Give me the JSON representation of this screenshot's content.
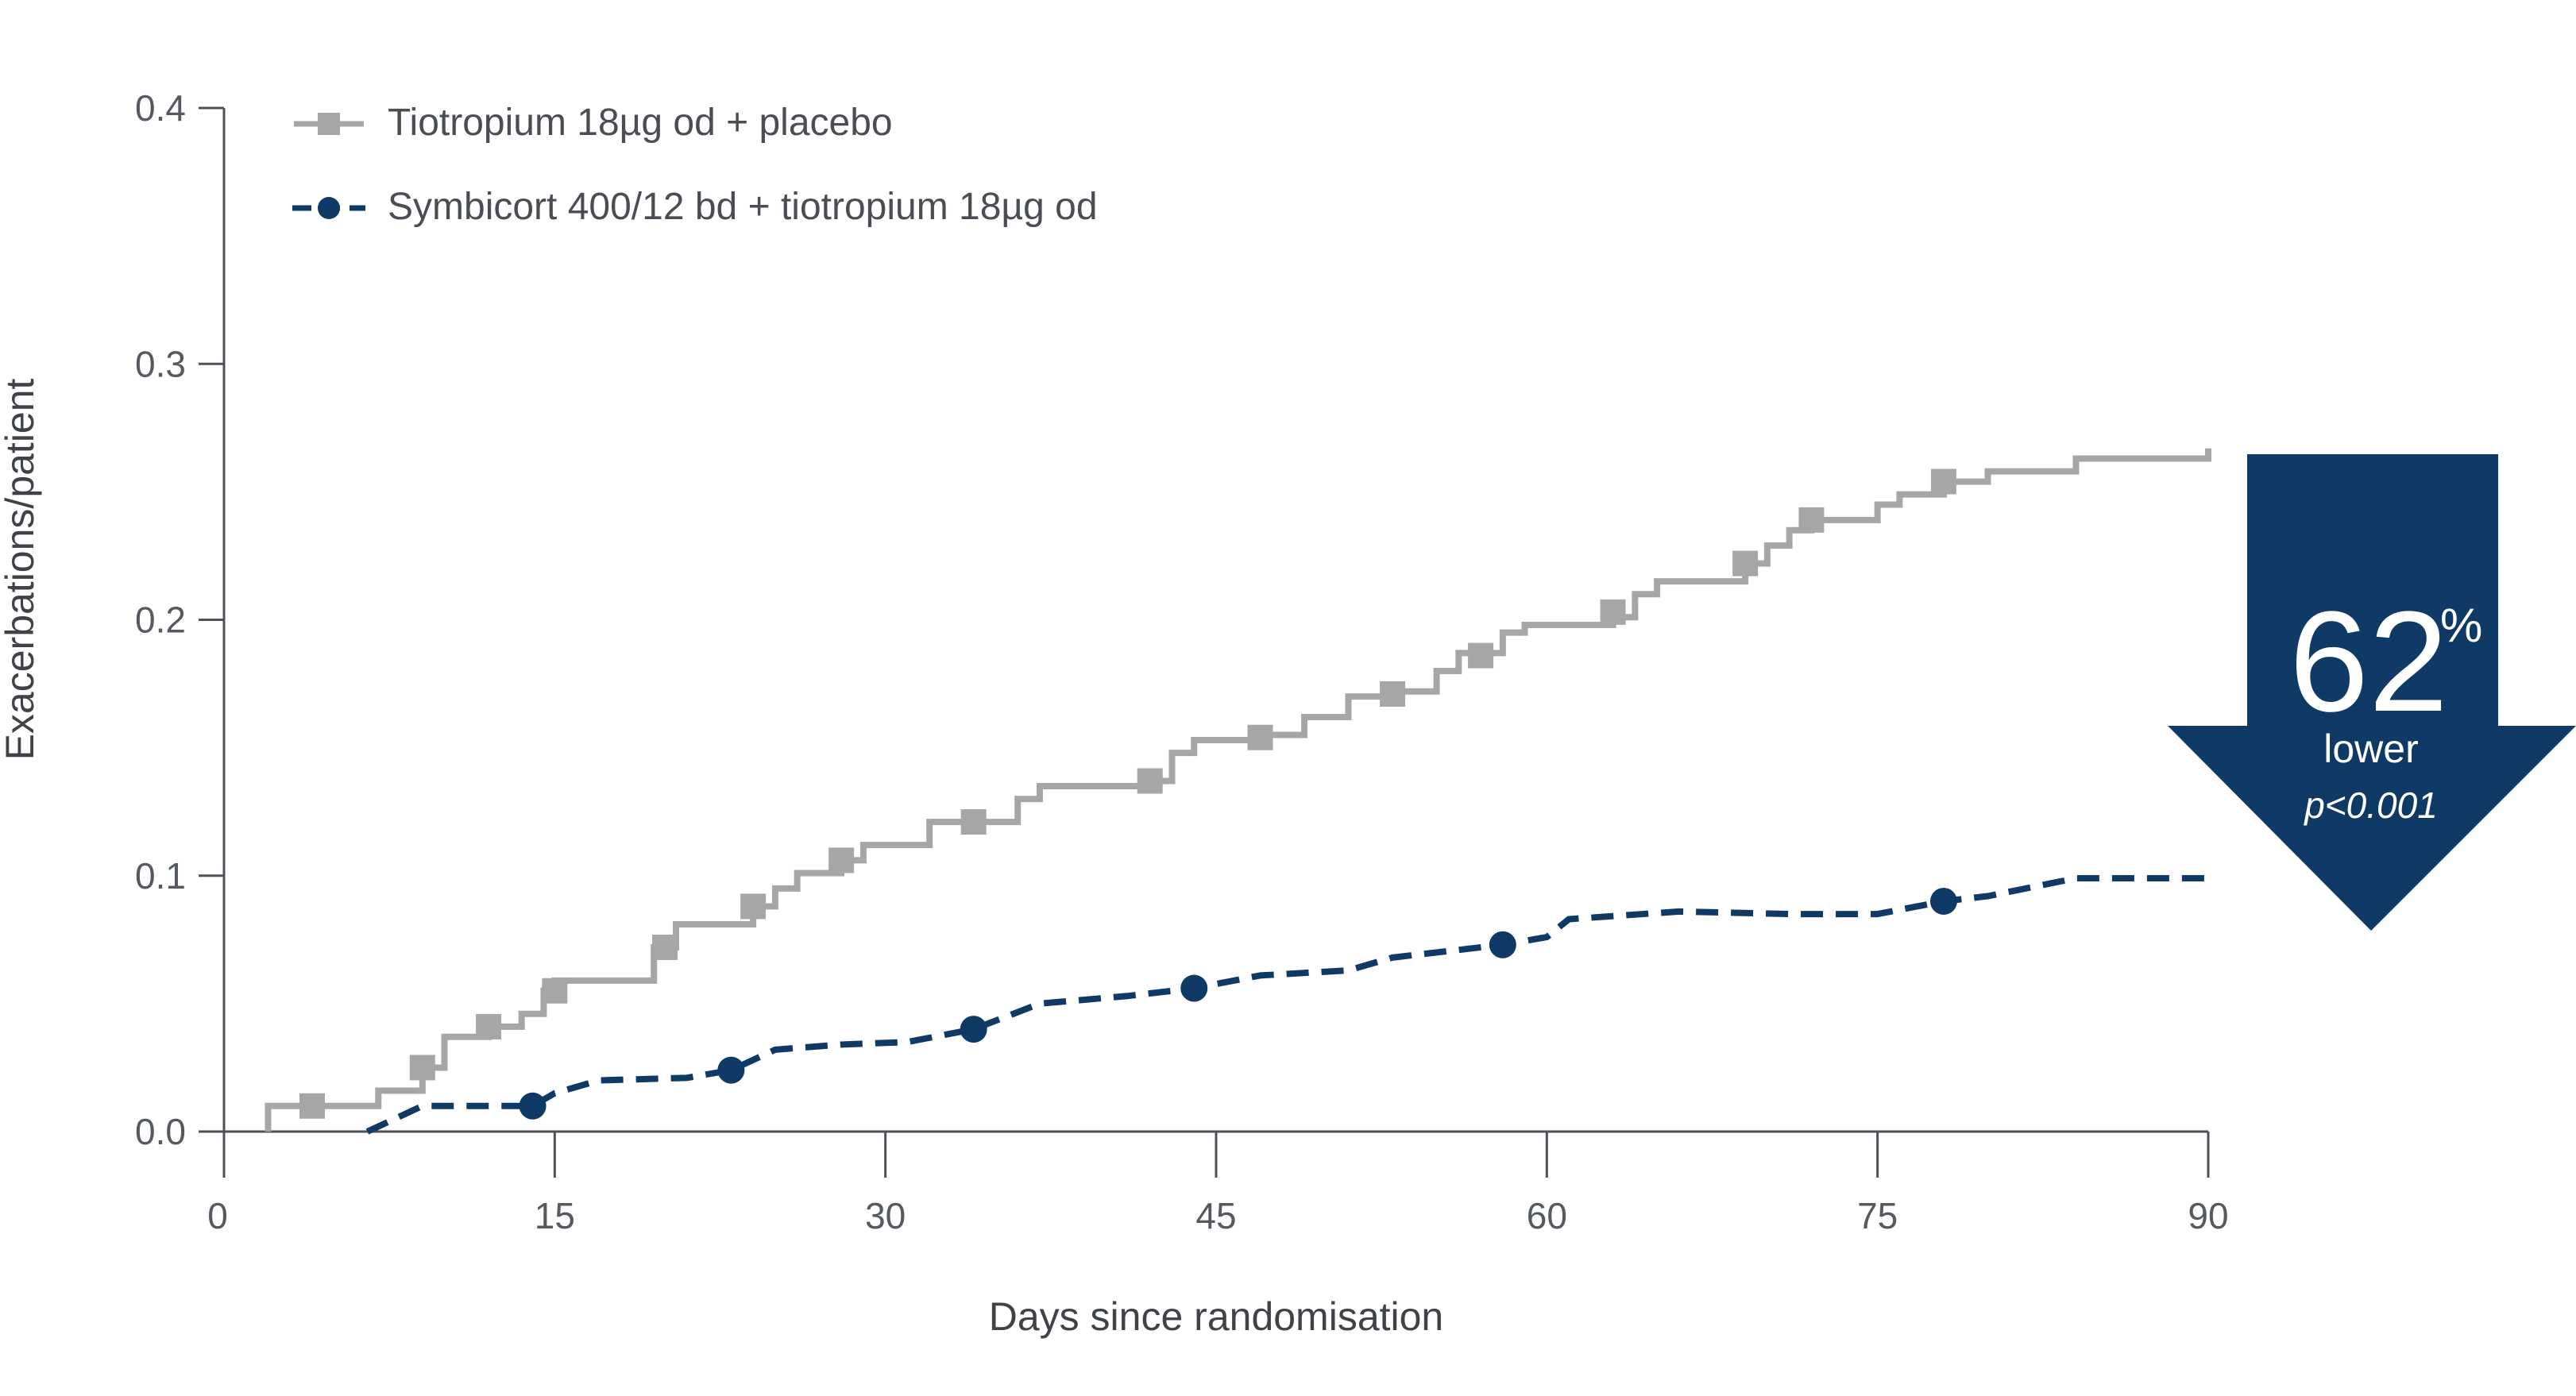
{
  "chart_data": {
    "type": "line",
    "xlabel": "Days since randomisation",
    "ylabel": "Exacerbations/patient",
    "xlim": [
      0,
      90
    ],
    "ylim": [
      0,
      0.4
    ],
    "xticks": [
      "0",
      "15",
      "30",
      "45",
      "60",
      "75",
      "90"
    ],
    "yticks": [
      "0.0",
      "0.1",
      "0.2",
      "0.3",
      "0.4"
    ],
    "grid": false,
    "legend_position": "top-left",
    "series": [
      {
        "name": "Tiotropium 18µg od + placebo",
        "color": "#a6a6a6",
        "style": "step",
        "marker": "square",
        "x": [
          2,
          4,
          7,
          9,
          10,
          12,
          13.5,
          14.5,
          15,
          19.5,
          20.5,
          24,
          25,
          26,
          28,
          29,
          32,
          34,
          36,
          37,
          42,
          43,
          44,
          47,
          49,
          51,
          53,
          55,
          56,
          58,
          59,
          63,
          64,
          65,
          69,
          70,
          71,
          72,
          75,
          76,
          78,
          80,
          84,
          90
        ],
        "y": [
          0.01,
          0.01,
          0.016,
          0.025,
          0.037,
          0.041,
          0.046,
          0.055,
          0.059,
          0.072,
          0.081,
          0.088,
          0.095,
          0.101,
          0.106,
          0.112,
          0.121,
          0.121,
          0.13,
          0.135,
          0.137,
          0.148,
          0.153,
          0.155,
          0.162,
          0.17,
          0.172,
          0.18,
          0.187,
          0.195,
          0.198,
          0.201,
          0.21,
          0.215,
          0.222,
          0.229,
          0.235,
          0.239,
          0.245,
          0.249,
          0.254,
          0.258,
          0.263,
          0.267
        ],
        "markers_x": [
          4,
          9,
          12,
          15,
          20,
          24,
          28,
          34,
          42,
          47,
          53,
          57,
          63,
          69,
          72,
          78
        ],
        "markers_y": [
          0.01,
          0.025,
          0.041,
          0.055,
          0.072,
          0.088,
          0.106,
          0.121,
          0.137,
          0.154,
          0.171,
          0.186,
          0.203,
          0.222,
          0.239,
          0.254
        ]
      },
      {
        "name": "Symbicort 400/12 bd + tiotropium 18µg od",
        "color": "#0f3a66",
        "style": "dashed",
        "marker": "circle",
        "x": [
          6.5,
          9,
          11,
          14,
          15,
          17,
          21,
          23,
          25,
          28,
          31,
          34,
          37,
          41,
          44,
          47,
          51,
          53,
          56,
          58,
          60,
          61,
          66,
          71,
          75,
          78,
          80,
          84,
          90
        ],
        "y": [
          0.0,
          0.01,
          0.01,
          0.01,
          0.015,
          0.02,
          0.021,
          0.024,
          0.032,
          0.034,
          0.035,
          0.04,
          0.05,
          0.053,
          0.056,
          0.061,
          0.063,
          0.068,
          0.071,
          0.073,
          0.076,
          0.083,
          0.086,
          0.085,
          0.085,
          0.09,
          0.092,
          0.099,
          0.099
        ],
        "markers_x": [
          14,
          23,
          34,
          44,
          58,
          78
        ],
        "markers_y": [
          0.01,
          0.024,
          0.04,
          0.056,
          0.073,
          0.09
        ]
      }
    ],
    "callout": {
      "value": "62",
      "unit": "%",
      "label": "lower",
      "p_value": "p<0.001",
      "color": "#0f3a66"
    }
  }
}
